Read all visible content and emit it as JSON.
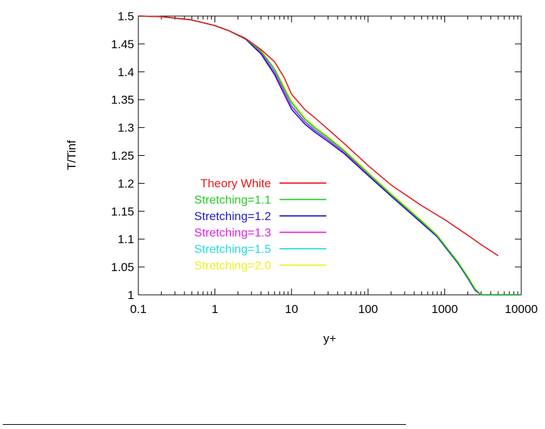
{
  "chart_data": {
    "type": "line",
    "xlabel": "y+",
    "ylabel": "T/Tinf",
    "xscale": "log",
    "xlim": [
      0.1,
      10000
    ],
    "ylim": [
      1,
      1.5
    ],
    "xticks": [
      0.1,
      1,
      10,
      100,
      1000,
      10000
    ],
    "xtick_labels": [
      "0.1",
      "1",
      "10",
      "100",
      "1000",
      "10000"
    ],
    "yticks": [
      1,
      1.05,
      1.1,
      1.15,
      1.2,
      1.25,
      1.3,
      1.35,
      1.4,
      1.45,
      1.5
    ],
    "ytick_labels": [
      "1",
      "1.05",
      "1.1",
      "1.15",
      "1.2",
      "1.25",
      "1.3",
      "1.35",
      "1.4",
      "1.45",
      "1.5"
    ],
    "grid": false,
    "legend_position": "left",
    "series": [
      {
        "name": "Theory White",
        "color": "#e41a1c",
        "x": [
          0.1,
          0.2,
          0.5,
          1,
          1.5,
          2.5,
          4,
          6,
          8,
          10,
          15,
          20,
          30,
          50,
          100,
          200,
          500,
          1000,
          2000,
          3000,
          5000
        ],
        "y": [
          1.5,
          1.499,
          1.493,
          1.483,
          1.474,
          1.46,
          1.44,
          1.418,
          1.39,
          1.36,
          1.332,
          1.318,
          1.297,
          1.27,
          1.232,
          1.197,
          1.16,
          1.135,
          1.107,
          1.09,
          1.07
        ]
      },
      {
        "name": "Stretching=1.1",
        "color": "#22cc22",
        "x": [
          0.1,
          0.2,
          0.5,
          1,
          1.5,
          2.5,
          4,
          6,
          8,
          10,
          15,
          20,
          30,
          50,
          100,
          200,
          500,
          800,
          1000,
          1500,
          2000,
          2500,
          3000,
          5000,
          10000
        ],
        "y": [
          1.5,
          1.499,
          1.493,
          1.483,
          1.474,
          1.46,
          1.437,
          1.405,
          1.37,
          1.345,
          1.315,
          1.3,
          1.282,
          1.257,
          1.218,
          1.18,
          1.132,
          1.106,
          1.089,
          1.058,
          1.032,
          1.01,
          1.0,
          1.0,
          1.0
        ]
      },
      {
        "name": "Stretching=1.2",
        "color": "#1a1acc",
        "x": [
          0.1,
          0.2,
          0.5,
          1,
          1.5,
          2.5,
          4,
          6,
          8,
          10,
          15,
          20,
          30,
          50,
          100,
          200,
          500,
          800,
          1000,
          1500,
          2000,
          2500,
          3000,
          5000,
          10000
        ],
        "y": [
          1.5,
          1.499,
          1.493,
          1.483,
          1.474,
          1.459,
          1.432,
          1.395,
          1.36,
          1.333,
          1.306,
          1.292,
          1.275,
          1.252,
          1.214,
          1.177,
          1.129,
          1.104,
          1.087,
          1.056,
          1.03,
          1.008,
          1.0,
          1.0,
          1.0
        ]
      },
      {
        "name": "Stretching=1.3",
        "color": "#dd22dd",
        "x": [
          0.1,
          0.2,
          0.5,
          1,
          1.5,
          2.5,
          4,
          6,
          8,
          10,
          15,
          20,
          30,
          50,
          100,
          200,
          500,
          800,
          1000,
          1500,
          2000,
          2500,
          3000,
          5000,
          10000
        ],
        "y": [
          1.5,
          1.499,
          1.493,
          1.483,
          1.474,
          1.459,
          1.434,
          1.399,
          1.365,
          1.338,
          1.31,
          1.295,
          1.278,
          1.254,
          1.216,
          1.178,
          1.13,
          1.105,
          1.088,
          1.057,
          1.031,
          1.009,
          1.0,
          1.0,
          1.0
        ]
      },
      {
        "name": "Stretching=1.5",
        "color": "#22dddd",
        "x": [
          0.1,
          0.2,
          0.5,
          1,
          1.5,
          2.5,
          4,
          6,
          8,
          10,
          15,
          20,
          30,
          50,
          100,
          200,
          500,
          800,
          1000,
          1500,
          2000,
          2500,
          3000,
          5000,
          10000
        ],
        "y": [
          1.5,
          1.499,
          1.493,
          1.483,
          1.474,
          1.459,
          1.435,
          1.401,
          1.366,
          1.34,
          1.311,
          1.297,
          1.279,
          1.255,
          1.216,
          1.179,
          1.13,
          1.105,
          1.088,
          1.057,
          1.031,
          1.009,
          1.0,
          1.0,
          1.0
        ]
      },
      {
        "name": "Stretching=2.0",
        "color": "#eeee22",
        "x": [
          0.1,
          0.2,
          0.5,
          1,
          1.5,
          2.5,
          4,
          6,
          8,
          10,
          15,
          20,
          30,
          50,
          100,
          200,
          500,
          800,
          1000,
          1500,
          2000,
          2500,
          3000,
          5000,
          10000
        ],
        "y": [
          1.5,
          1.499,
          1.493,
          1.483,
          1.474,
          1.46,
          1.438,
          1.406,
          1.374,
          1.348,
          1.318,
          1.302,
          1.284,
          1.259,
          1.22,
          1.182,
          1.134,
          1.107,
          1.09,
          1.059,
          1.033,
          1.011,
          1.0,
          1.0,
          1.0
        ]
      }
    ]
  }
}
